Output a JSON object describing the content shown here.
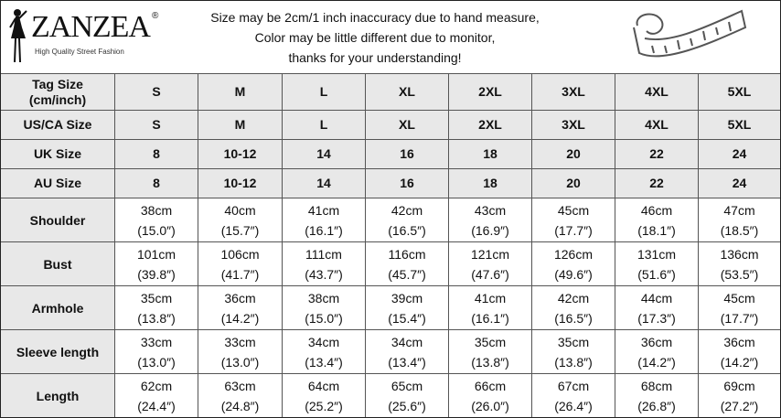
{
  "brand": {
    "name": "ZANZEA",
    "registered": "®",
    "tagline": "High Quality Street Fashion"
  },
  "notice": [
    "Size may be 2cm/1 inch inaccuracy due to hand measure,",
    "Color may be little different due to monitor,",
    "thanks for your understanding!"
  ],
  "icons": {
    "logo": "fashion-model-silhouette",
    "tape": "measuring-tape-icon"
  },
  "size_rows": [
    {
      "label": [
        "Tag Size",
        "(cm/inch)"
      ],
      "values": [
        "S",
        "M",
        "L",
        "XL",
        "2XL",
        "3XL",
        "4XL",
        "5XL"
      ]
    },
    {
      "label": [
        "US/CA Size"
      ],
      "values": [
        "S",
        "M",
        "L",
        "XL",
        "2XL",
        "3XL",
        "4XL",
        "5XL"
      ]
    },
    {
      "label": [
        "UK Size"
      ],
      "values": [
        "8",
        "10-12",
        "14",
        "16",
        "18",
        "20",
        "22",
        "24"
      ]
    },
    {
      "label": [
        "AU Size"
      ],
      "values": [
        "8",
        "10-12",
        "14",
        "16",
        "18",
        "20",
        "22",
        "24"
      ]
    }
  ],
  "measure_rows": [
    {
      "label": "Shoulder",
      "cm": [
        "38cm",
        "40cm",
        "41cm",
        "42cm",
        "43cm",
        "45cm",
        "46cm",
        "47cm"
      ],
      "inch": [
        "(15.0″)",
        "(15.7″)",
        "(16.1″)",
        "(16.5″)",
        "(16.9″)",
        "(17.7″)",
        "(18.1″)",
        "(18.5″)"
      ]
    },
    {
      "label": "Bust",
      "cm": [
        "101cm",
        "106cm",
        "111cm",
        "116cm",
        "121cm",
        "126cm",
        "131cm",
        "136cm"
      ],
      "inch": [
        "(39.8″)",
        "(41.7″)",
        "(43.7″)",
        "(45.7″)",
        "(47.6″)",
        "(49.6″)",
        "(51.6″)",
        "(53.5″)"
      ]
    },
    {
      "label": "Armhole",
      "cm": [
        "35cm",
        "36cm",
        "38cm",
        "39cm",
        "41cm",
        "42cm",
        "44cm",
        "45cm"
      ],
      "inch": [
        "(13.8″)",
        "(14.2″)",
        "(15.0″)",
        "(15.4″)",
        "(16.1″)",
        "(16.5″)",
        "(17.3″)",
        "(17.7″)"
      ]
    },
    {
      "label": "Sleeve length",
      "cm": [
        "33cm",
        "33cm",
        "34cm",
        "34cm",
        "35cm",
        "35cm",
        "36cm",
        "36cm"
      ],
      "inch": [
        "(13.0″)",
        "(13.0″)",
        "(13.4″)",
        "(13.4″)",
        "(13.8″)",
        "(13.8″)",
        "(14.2″)",
        "(14.2″)"
      ]
    },
    {
      "label": "Length",
      "cm": [
        "62cm",
        "63cm",
        "64cm",
        "65cm",
        "66cm",
        "67cm",
        "68cm",
        "69cm"
      ],
      "inch": [
        "(24.4″)",
        "(24.8″)",
        "(25.2″)",
        "(25.6″)",
        "(26.0″)",
        "(26.4″)",
        "(26.8″)",
        "(27.2″)"
      ]
    }
  ]
}
